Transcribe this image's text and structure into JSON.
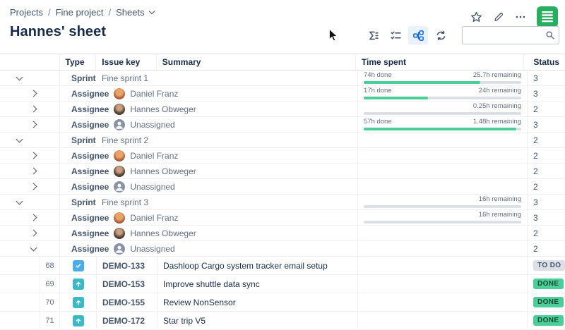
{
  "app": {
    "breadcrumb": [
      "Projects",
      "Fine project",
      "Sheets"
    ],
    "separator": "/",
    "title": "Hannes' sheet",
    "header_icons": [
      "star",
      "edit-pencil",
      "more-options",
      "app-logo"
    ],
    "toolbar_icons": [
      {
        "name": "sum-aggregate",
        "active": false
      },
      {
        "name": "checklist",
        "active": false
      },
      {
        "name": "group-hierarchy",
        "active": true
      },
      {
        "name": "refresh",
        "active": false
      }
    ],
    "search": {
      "value": "",
      "placeholder": ""
    }
  },
  "colors": {
    "logo_green": "#27AE60",
    "active_icon_blue": "#0C66E4",
    "progress_green": "#4BCE97",
    "task_icon_blue": "#4BADE8",
    "improvement_icon_teal": "#3CB9C6",
    "done_badge_green": "#4BCE97",
    "todo_badge_gray": "#DCDFE4"
  },
  "table": {
    "columns": [
      {
        "label": "Type"
      },
      {
        "label": "Issue key"
      },
      {
        "label": "Summary"
      },
      {
        "label": "Time spent"
      },
      {
        "label": "Status"
      }
    ],
    "rows": [
      {
        "kind": "group",
        "level": 0,
        "expanded": true,
        "label": "Sprint",
        "value": "Fine sprint 1",
        "avatar": null,
        "time": {
          "done": "74h done",
          "remaining": "25.7h remaining",
          "pct": 74
        },
        "count": "3"
      },
      {
        "kind": "group",
        "level": 1,
        "expanded": false,
        "label": "Assignee",
        "value": "Daniel Franz",
        "avatar": "daniel",
        "time": {
          "done": "17h done",
          "remaining": "24h remaining",
          "pct": 41
        },
        "count": "3"
      },
      {
        "kind": "group",
        "level": 1,
        "expanded": false,
        "label": "Assignee",
        "value": "Hannes Obweger",
        "avatar": "hannes",
        "time": {
          "done": "",
          "remaining": "0.25h remaining",
          "pct": 0
        },
        "count": "2"
      },
      {
        "kind": "group",
        "level": 1,
        "expanded": false,
        "label": "Assignee",
        "value": "Unassigned",
        "avatar": "unassigned",
        "time": {
          "done": "57h done",
          "remaining": "1.48h remaining",
          "pct": 97
        },
        "count": "3"
      },
      {
        "kind": "group",
        "level": 0,
        "expanded": true,
        "label": "Sprint",
        "value": "Fine sprint 2",
        "avatar": null,
        "time": null,
        "count": "2"
      },
      {
        "kind": "group",
        "level": 1,
        "expanded": false,
        "label": "Assignee",
        "value": "Daniel Franz",
        "avatar": "daniel",
        "time": null,
        "count": "2"
      },
      {
        "kind": "group",
        "level": 1,
        "expanded": false,
        "label": "Assignee",
        "value": "Hannes Obweger",
        "avatar": "hannes",
        "time": null,
        "count": "2"
      },
      {
        "kind": "group",
        "level": 1,
        "expanded": false,
        "label": "Assignee",
        "value": "Unassigned",
        "avatar": "unassigned",
        "time": null,
        "count": "2"
      },
      {
        "kind": "group",
        "level": 0,
        "expanded": true,
        "label": "Sprint",
        "value": "Fine sprint 3",
        "avatar": null,
        "time": {
          "done": "",
          "remaining": "16h remaining",
          "pct": 0
        },
        "count": "3"
      },
      {
        "kind": "group",
        "level": 1,
        "expanded": false,
        "label": "Assignee",
        "value": "Daniel Franz",
        "avatar": "daniel",
        "time": {
          "done": "",
          "remaining": "16h remaining",
          "pct": 0
        },
        "count": "3"
      },
      {
        "kind": "group",
        "level": 1,
        "expanded": false,
        "label": "Assignee",
        "value": "Hannes Obweger",
        "avatar": "hannes",
        "time": null,
        "count": "2"
      },
      {
        "kind": "group",
        "level": 1,
        "expanded": true,
        "label": "Assignee",
        "value": "Unassigned",
        "avatar": "unassigned",
        "time": null,
        "count": "2"
      },
      {
        "kind": "issue",
        "num": "68",
        "type": "task",
        "key": "DEMO-133",
        "summary": "Dashloop Cargo system tracker email setup",
        "status": {
          "label": "TO DO",
          "kind": "todo"
        }
      },
      {
        "kind": "issue",
        "num": "69",
        "type": "improvement",
        "key": "DEMO-153",
        "summary": "Improve shuttle data sync",
        "status": {
          "label": "DONE",
          "kind": "done"
        }
      },
      {
        "kind": "issue",
        "num": "70",
        "type": "improvement",
        "key": "DEMO-155",
        "summary": "Review NonSensor",
        "status": {
          "label": "DONE",
          "kind": "done"
        }
      },
      {
        "kind": "issue",
        "num": "71",
        "type": "improvement",
        "key": "DEMO-172",
        "summary": "Star trip V5",
        "status": {
          "label": "DONE",
          "kind": "done"
        }
      }
    ]
  }
}
